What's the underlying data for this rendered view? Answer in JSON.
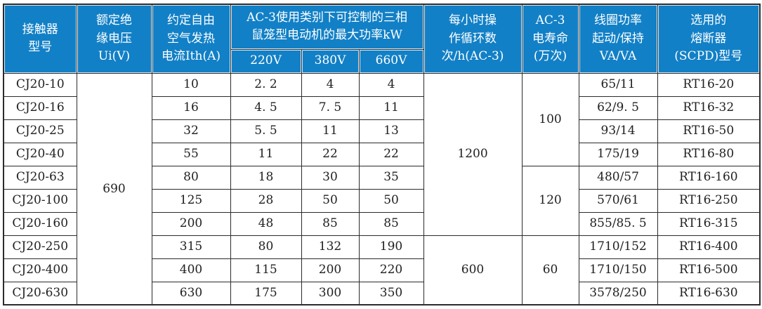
{
  "table": {
    "title_semantic": "CJ20 contactor technical specification table",
    "colors": {
      "header_bg": "#1280c6",
      "header_text": "#ffffff",
      "body_text": "#1f1f1f",
      "border": "#2b2b2b"
    },
    "header": {
      "model": "接触器\n型号",
      "rated_insulation_voltage": "额定绝\n缘电压\nUi(V)",
      "thermal_current": "约定自由\n空气发热\n电流Ith(A)",
      "ac3_group": "AC-3使用类别下可控制的三相\n鼠笼型电动机的最大功率kW",
      "v220": "220V",
      "v380": "380V",
      "v660": "660V",
      "cycles_per_hour": "每小时操\n作循环数\n次/h(AC-3)",
      "electrical_life": "AC-3\n电寿命\n(万次)",
      "coil_power": "线圈功率\n起动/保持\nVA/VA",
      "fuse": "选用的\n熔断器\n(SCPD)型号"
    },
    "merged": {
      "ui_rows_1_10": "690",
      "cycles_rows_1_7": "1200",
      "cycles_rows_8_10": "600",
      "life_rows_1_4": "100",
      "life_rows_5_7": "120",
      "life_rows_8_10": "60"
    },
    "rows": [
      {
        "model": "CJ20-10",
        "ith": "10",
        "kw220": "2. 2",
        "kw380": "4",
        "kw660": "4",
        "coil": "65/11",
        "fuse": "RT16-20"
      },
      {
        "model": "CJ20-16",
        "ith": "16",
        "kw220": "4. 5",
        "kw380": "7. 5",
        "kw660": "11",
        "coil": "62/9. 5",
        "fuse": "RT16-32"
      },
      {
        "model": "CJ20-25",
        "ith": "32",
        "kw220": "5. 5",
        "kw380": "11",
        "kw660": "13",
        "coil": "93/14",
        "fuse": "RT16-50"
      },
      {
        "model": "CJ20-40",
        "ith": "55",
        "kw220": "11",
        "kw380": "22",
        "kw660": "22",
        "coil": "175/19",
        "fuse": "RT16-80"
      },
      {
        "model": "CJ20-63",
        "ith": "80",
        "kw220": "18",
        "kw380": "30",
        "kw660": "35",
        "coil": "480/57",
        "fuse": "RT16-160"
      },
      {
        "model": "CJ20-100",
        "ith": "125",
        "kw220": "28",
        "kw380": "50",
        "kw660": "50",
        "coil": "570/61",
        "fuse": "RT16-250"
      },
      {
        "model": "CJ20-160",
        "ith": "200",
        "kw220": "48",
        "kw380": "85",
        "kw660": "85",
        "coil": "855/85. 5",
        "fuse": "RT16-315"
      },
      {
        "model": "CJ20-250",
        "ith": "315",
        "kw220": "80",
        "kw380": "132",
        "kw660": "190",
        "coil": "1710/152",
        "fuse": "RT16-400"
      },
      {
        "model": "CJ20-400",
        "ith": "400",
        "kw220": "115",
        "kw380": "200",
        "kw660": "220",
        "coil": "1710/150",
        "fuse": "RT16-500"
      },
      {
        "model": "CJ20-630",
        "ith": "630",
        "kw220": "175",
        "kw380": "300",
        "kw660": "350",
        "coil": "3578/250",
        "fuse": "RT16-630"
      }
    ]
  }
}
